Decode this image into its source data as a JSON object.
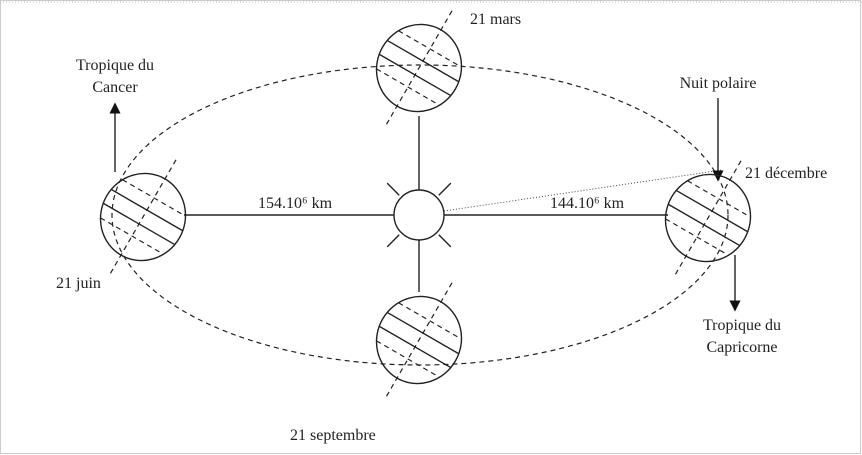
{
  "labels": {
    "march": "21 mars",
    "cancer": [
      "Tropique du",
      "Cancer"
    ],
    "polar_night": "Nuit polaire",
    "december": "21 décembre",
    "distance_left": "154.10⁶ km",
    "distance_right": "144.10⁶ km",
    "june": "21 juin",
    "capricorn": [
      "Tropique du",
      "Capricorne"
    ],
    "september": "21 septembre"
  }
}
